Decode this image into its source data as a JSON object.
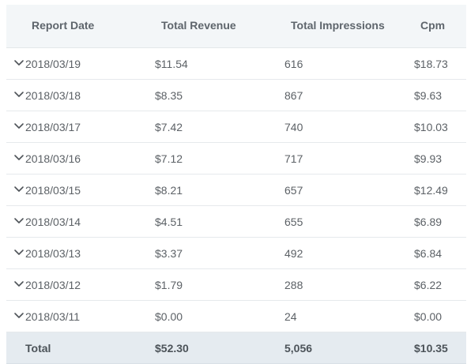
{
  "table": {
    "headers": {
      "report_date": "Report Date",
      "total_revenue": "Total Revenue",
      "total_impressions": "Total Impressions",
      "cpm": "Cpm"
    },
    "rows": [
      {
        "date": "2018/03/19",
        "revenue": "$11.54",
        "impressions": "616",
        "cpm": "$18.73"
      },
      {
        "date": "2018/03/18",
        "revenue": "$8.35",
        "impressions": "867",
        "cpm": "$9.63"
      },
      {
        "date": "2018/03/17",
        "revenue": "$7.42",
        "impressions": "740",
        "cpm": "$10.03"
      },
      {
        "date": "2018/03/16",
        "revenue": "$7.12",
        "impressions": "717",
        "cpm": "$9.93"
      },
      {
        "date": "2018/03/15",
        "revenue": "$8.21",
        "impressions": "657",
        "cpm": "$12.49"
      },
      {
        "date": "2018/03/14",
        "revenue": "$4.51",
        "impressions": "655",
        "cpm": "$6.89"
      },
      {
        "date": "2018/03/13",
        "revenue": "$3.37",
        "impressions": "492",
        "cpm": "$6.84"
      },
      {
        "date": "2018/03/12",
        "revenue": "$1.79",
        "impressions": "288",
        "cpm": "$6.22"
      },
      {
        "date": "2018/03/11",
        "revenue": "$0.00",
        "impressions": "24",
        "cpm": "$0.00"
      }
    ],
    "total": {
      "label": "Total",
      "revenue": "$52.30",
      "impressions": "5,056",
      "cpm": "$10.35"
    }
  },
  "icons": {
    "expand": "chevron-down-icon"
  },
  "colors": {
    "header_bg": "#f3f6f8",
    "total_bg": "#e5ebf0",
    "divider": "#e6e9ec",
    "text": "#5c6166"
  }
}
